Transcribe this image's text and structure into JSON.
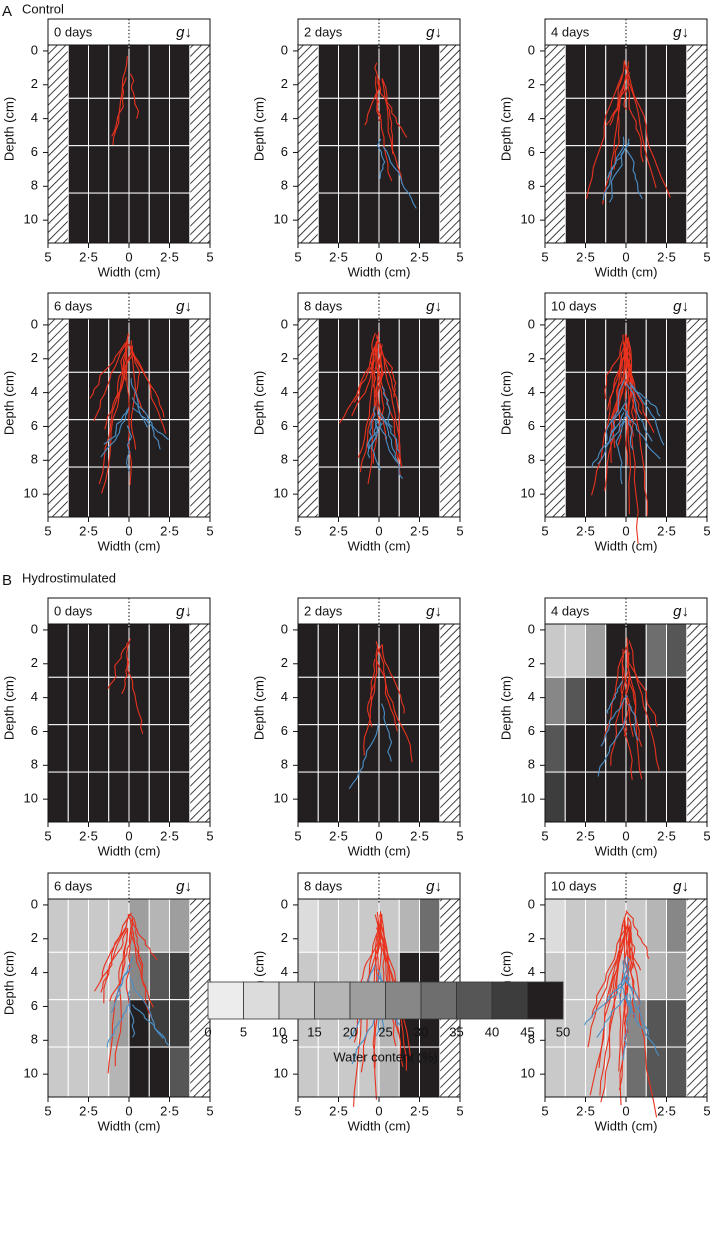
{
  "sections": [
    {
      "letter": "A",
      "label": "Control"
    },
    {
      "letter": "B",
      "label": "Hydrostimulated"
    }
  ],
  "chart_data": [
    {
      "type": "heatmap",
      "title": "0 days",
      "annotation": "g↓",
      "xlabel": "Width (cm)",
      "ylabel": "Depth (cm)",
      "xlim": [
        -5,
        5
      ],
      "ylim": [
        -0.35,
        11.35
      ],
      "xticks": [
        {
          "value": -5,
          "label": "5"
        },
        {
          "value": -2.5,
          "label": "2·5"
        },
        0,
        {
          "value": 2.5,
          "label": "2·5"
        },
        5
      ],
      "yticks": [
        0,
        2,
        4,
        6,
        8,
        10
      ],
      "x_edges": [
        -3.75,
        -2.5,
        -1.25,
        0,
        1.25,
        2.5,
        3.75
      ],
      "y_edges": [
        -0.35,
        2.8,
        5.6,
        8.4,
        11.35
      ],
      "z": [
        [
          47.5,
          47.5,
          47.5,
          47.5,
          47.5,
          47.5
        ],
        [
          47.5,
          47.5,
          47.5,
          47.5,
          47.5,
          47.5
        ],
        [
          47.5,
          47.5,
          47.5,
          47.5,
          47.5,
          47.5
        ],
        [
          47.5,
          47.5,
          47.5,
          47.5,
          47.5,
          47.5
        ]
      ]
    },
    {
      "type": "heatmap",
      "title": "2 days",
      "annotation": "g↓",
      "xlabel": "Width (cm)",
      "ylabel": "Depth (cm)",
      "xlim": [
        -5,
        5
      ],
      "ylim": [
        -0.35,
        11.35
      ],
      "xticks": [
        {
          "value": -5,
          "label": "5"
        },
        {
          "value": -2.5,
          "label": "2·5"
        },
        0,
        {
          "value": 2.5,
          "label": "2·5"
        },
        5
      ],
      "yticks": [
        0,
        2,
        4,
        6,
        8,
        10
      ],
      "x_edges": [
        -3.75,
        -2.5,
        -1.25,
        0,
        1.25,
        2.5,
        3.75
      ],
      "y_edges": [
        -0.35,
        2.8,
        5.6,
        8.4,
        11.35
      ],
      "z": [
        [
          47.5,
          47.5,
          47.5,
          47.5,
          47.5,
          47.5
        ],
        [
          47.5,
          47.5,
          47.5,
          47.5,
          47.5,
          47.5
        ],
        [
          47.5,
          47.5,
          47.5,
          47.5,
          47.5,
          47.5
        ],
        [
          47.5,
          47.5,
          47.5,
          47.5,
          47.5,
          47.5
        ]
      ]
    },
    {
      "type": "heatmap",
      "title": "4 days",
      "annotation": "g↓",
      "xlabel": "Width (cm)",
      "ylabel": "Depth (cm)",
      "xlim": [
        -5,
        5
      ],
      "ylim": [
        -0.35,
        11.35
      ],
      "xticks": [
        {
          "value": -5,
          "label": "5"
        },
        {
          "value": -2.5,
          "label": "2·5"
        },
        0,
        {
          "value": 2.5,
          "label": "2·5"
        },
        5
      ],
      "yticks": [
        0,
        2,
        4,
        6,
        8,
        10
      ],
      "x_edges": [
        -3.75,
        -2.5,
        -1.25,
        0,
        1.25,
        2.5,
        3.75
      ],
      "y_edges": [
        -0.35,
        2.8,
        5.6,
        8.4,
        11.35
      ],
      "z": [
        [
          47.5,
          47.5,
          47.5,
          47.5,
          47.5,
          47.5
        ],
        [
          47.5,
          47.5,
          47.5,
          47.5,
          47.5,
          47.5
        ],
        [
          47.5,
          47.5,
          47.5,
          47.5,
          47.5,
          47.5
        ],
        [
          47.5,
          47.5,
          47.5,
          47.5,
          47.5,
          47.5
        ]
      ]
    },
    {
      "type": "heatmap",
      "title": "6 days",
      "annotation": "g↓",
      "xlabel": "Width (cm)",
      "ylabel": "Depth (cm)",
      "xlim": [
        -5,
        5
      ],
      "ylim": [
        -0.35,
        11.35
      ],
      "xticks": [
        {
          "value": -5,
          "label": "5"
        },
        {
          "value": -2.5,
          "label": "2·5"
        },
        0,
        {
          "value": 2.5,
          "label": "2·5"
        },
        5
      ],
      "yticks": [
        0,
        2,
        4,
        6,
        8,
        10
      ],
      "x_edges": [
        -3.75,
        -2.5,
        -1.25,
        0,
        1.25,
        2.5,
        3.75
      ],
      "y_edges": [
        -0.35,
        2.8,
        5.6,
        8.4,
        11.35
      ],
      "z": [
        [
          47.5,
          47.5,
          47.5,
          47.5,
          47.5,
          47.5
        ],
        [
          47.5,
          47.5,
          47.5,
          47.5,
          47.5,
          47.5
        ],
        [
          47.5,
          47.5,
          47.5,
          47.5,
          47.5,
          47.5
        ],
        [
          47.5,
          47.5,
          47.5,
          47.5,
          47.5,
          47.5
        ]
      ]
    },
    {
      "type": "heatmap",
      "title": "8 days",
      "annotation": "g↓",
      "xlabel": "Width (cm)",
      "ylabel": "Depth (cm)",
      "xlim": [
        -5,
        5
      ],
      "ylim": [
        -0.35,
        11.35
      ],
      "xticks": [
        {
          "value": -5,
          "label": "5"
        },
        {
          "value": -2.5,
          "label": "2·5"
        },
        0,
        {
          "value": 2.5,
          "label": "2·5"
        },
        5
      ],
      "yticks": [
        0,
        2,
        4,
        6,
        8,
        10
      ],
      "x_edges": [
        -3.75,
        -2.5,
        -1.25,
        0,
        1.25,
        2.5,
        3.75
      ],
      "y_edges": [
        -0.35,
        2.8,
        5.6,
        8.4,
        11.35
      ],
      "z": [
        [
          47.5,
          47.5,
          47.5,
          47.5,
          47.5,
          47.5
        ],
        [
          47.5,
          47.5,
          47.5,
          47.5,
          47.5,
          47.5
        ],
        [
          47.5,
          47.5,
          47.5,
          47.5,
          47.5,
          47.5
        ],
        [
          47.5,
          47.5,
          47.5,
          47.5,
          47.5,
          47.5
        ]
      ]
    },
    {
      "type": "heatmap",
      "title": "10 days",
      "annotation": "g↓",
      "xlabel": "Width (cm)",
      "ylabel": "Depth (cm)",
      "xlim": [
        -5,
        5
      ],
      "ylim": [
        -0.35,
        11.35
      ],
      "xticks": [
        {
          "value": -5,
          "label": "5"
        },
        {
          "value": -2.5,
          "label": "2·5"
        },
        0,
        {
          "value": 2.5,
          "label": "2·5"
        },
        5
      ],
      "yticks": [
        0,
        2,
        4,
        6,
        8,
        10
      ],
      "x_edges": [
        -3.75,
        -2.5,
        -1.25,
        0,
        1.25,
        2.5,
        3.75
      ],
      "y_edges": [
        -0.35,
        2.8,
        5.6,
        8.4,
        11.35
      ],
      "z": [
        [
          47.5,
          47.5,
          47.5,
          47.5,
          47.5,
          47.5
        ],
        [
          47.5,
          47.5,
          47.5,
          47.5,
          47.5,
          47.5
        ],
        [
          47.5,
          47.5,
          47.5,
          47.5,
          47.5,
          47.5
        ],
        [
          47.5,
          47.5,
          47.5,
          47.5,
          47.5,
          47.5
        ]
      ]
    },
    {
      "type": "heatmap",
      "title": "0 days",
      "annotation": "g↓",
      "xlabel": "Width (cm)",
      "ylabel": "Depth (cm)",
      "xlim": [
        -5,
        5
      ],
      "ylim": [
        -0.35,
        11.35
      ],
      "xticks": [
        {
          "value": -5,
          "label": "5"
        },
        {
          "value": -2.5,
          "label": "2·5"
        },
        0,
        {
          "value": 2.5,
          "label": "2·5"
        },
        5
      ],
      "yticks": [
        0,
        2,
        4,
        6,
        8,
        10
      ],
      "x_edges": [
        -5,
        -3.75,
        -2.5,
        -1.25,
        0,
        1.25,
        2.5,
        3.75
      ],
      "y_edges": [
        -0.35,
        2.8,
        5.6,
        8.4,
        11.35
      ],
      "z": [
        [
          47.5,
          47.5,
          47.5,
          47.5,
          47.5,
          47.5,
          47.5
        ],
        [
          47.5,
          47.5,
          47.5,
          47.5,
          47.5,
          47.5,
          47.5
        ],
        [
          47.5,
          47.5,
          47.5,
          47.5,
          47.5,
          47.5,
          47.5
        ],
        [
          47.5,
          47.5,
          47.5,
          47.5,
          47.5,
          47.5,
          47.5
        ]
      ]
    },
    {
      "type": "heatmap",
      "title": "2 days",
      "annotation": "g↓",
      "xlabel": "Width (cm)",
      "ylabel": "Depth (cm)",
      "xlim": [
        -5,
        5
      ],
      "ylim": [
        -0.35,
        11.35
      ],
      "xticks": [
        {
          "value": -5,
          "label": "5"
        },
        {
          "value": -2.5,
          "label": "2·5"
        },
        0,
        {
          "value": 2.5,
          "label": "2·5"
        },
        5
      ],
      "yticks": [
        0,
        2,
        4,
        6,
        8,
        10
      ],
      "x_edges": [
        -5,
        -3.75,
        -2.5,
        -1.25,
        0,
        1.25,
        2.5,
        3.75
      ],
      "y_edges": [
        -0.35,
        2.8,
        5.6,
        8.4,
        11.35
      ],
      "z": [
        [
          47.5,
          47.5,
          47.5,
          47.5,
          47.5,
          47.5,
          47.5
        ],
        [
          47.5,
          47.5,
          47.5,
          47.5,
          47.5,
          47.5,
          47.5
        ],
        [
          47.5,
          47.5,
          47.5,
          47.5,
          47.5,
          47.5,
          47.5
        ],
        [
          47.5,
          47.5,
          47.5,
          47.5,
          47.5,
          47.5,
          47.5
        ]
      ]
    },
    {
      "type": "heatmap",
      "title": "4 days",
      "annotation": "g↓",
      "xlabel": "Width (cm)",
      "ylabel": "Depth (cm)",
      "xlim": [
        -5,
        5
      ],
      "ylim": [
        -0.35,
        11.35
      ],
      "xticks": [
        {
          "value": -5,
          "label": "5"
        },
        {
          "value": -2.5,
          "label": "2·5"
        },
        0,
        {
          "value": 2.5,
          "label": "2·5"
        },
        5
      ],
      "yticks": [
        0,
        2,
        4,
        6,
        8,
        10
      ],
      "x_edges": [
        -5,
        -3.75,
        -2.5,
        -1.25,
        0,
        1.25,
        2.5,
        3.75
      ],
      "y_edges": [
        -0.35,
        2.8,
        5.6,
        8.4,
        11.35
      ],
      "z": [
        [
          12.5,
          12.5,
          22.5,
          47.5,
          47.5,
          32.5,
          37.5
        ],
        [
          27.5,
          37.5,
          47.5,
          47.5,
          47.5,
          47.5,
          47.5
        ],
        [
          37.5,
          47.5,
          47.5,
          47.5,
          47.5,
          47.5,
          47.5
        ],
        [
          42.5,
          47.5,
          47.5,
          47.5,
          47.5,
          47.5,
          47.5
        ]
      ]
    },
    {
      "type": "heatmap",
      "title": "6 days",
      "annotation": "g↓",
      "xlabel": "Width (cm)",
      "ylabel": "Depth (cm)",
      "xlim": [
        -5,
        5
      ],
      "ylim": [
        -0.35,
        11.35
      ],
      "xticks": [
        {
          "value": -5,
          "label": "5"
        },
        {
          "value": -2.5,
          "label": "2·5"
        },
        0,
        {
          "value": 2.5,
          "label": "2·5"
        },
        5
      ],
      "yticks": [
        0,
        2,
        4,
        6,
        8,
        10
      ],
      "x_edges": [
        -5,
        -3.75,
        -2.5,
        -1.25,
        0,
        1.25,
        2.5,
        3.75
      ],
      "y_edges": [
        -0.35,
        2.8,
        5.6,
        8.4,
        11.35
      ],
      "z": [
        [
          12.5,
          12.5,
          12.5,
          12.5,
          22.5,
          17.5,
          22.5
        ],
        [
          12.5,
          12.5,
          12.5,
          12.5,
          27.5,
          37.5,
          42.5
        ],
        [
          12.5,
          12.5,
          12.5,
          22.5,
          47.5,
          42.5,
          42.5
        ],
        [
          12.5,
          12.5,
          12.5,
          17.5,
          47.5,
          47.5,
          37.5
        ]
      ]
    },
    {
      "type": "heatmap",
      "title": "8 days",
      "annotation": "g↓",
      "xlabel": "Width (cm)",
      "ylabel": "Depth (cm)",
      "xlim": [
        -5,
        5
      ],
      "ylim": [
        -0.35,
        11.35
      ],
      "xticks": [
        {
          "value": -5,
          "label": "5"
        },
        {
          "value": -2.5,
          "label": "2·5"
        },
        0,
        {
          "value": 2.5,
          "label": "2·5"
        },
        5
      ],
      "yticks": [
        0,
        2,
        4,
        6,
        8,
        10
      ],
      "x_edges": [
        -5,
        -3.75,
        -2.5,
        -1.25,
        0,
        1.25,
        2.5,
        3.75
      ],
      "y_edges": [
        -0.35,
        2.8,
        5.6,
        8.4,
        11.35
      ],
      "z": [
        [
          7.5,
          12.5,
          12.5,
          12.5,
          12.5,
          17.5,
          32.5
        ],
        [
          12.5,
          12.5,
          12.5,
          12.5,
          17.5,
          47.5,
          47.5
        ],
        [
          12.5,
          12.5,
          12.5,
          12.5,
          17.5,
          47.5,
          47.5
        ],
        [
          12.5,
          12.5,
          12.5,
          12.5,
          17.5,
          47.5,
          47.5
        ]
      ]
    },
    {
      "type": "heatmap",
      "title": "10 days",
      "annotation": "g↓",
      "xlabel": "Width (cm)",
      "ylabel": "Depth (cm)",
      "xlim": [
        -5,
        5
      ],
      "ylim": [
        -0.35,
        11.35
      ],
      "xticks": [
        {
          "value": -5,
          "label": "5"
        },
        {
          "value": -2.5,
          "label": "2·5"
        },
        0,
        {
          "value": 2.5,
          "label": "2·5"
        },
        5
      ],
      "yticks": [
        0,
        2,
        4,
        6,
        8,
        10
      ],
      "x_edges": [
        -5,
        -3.75,
        -2.5,
        -1.25,
        0,
        1.25,
        2.5,
        3.75
      ],
      "y_edges": [
        -0.35,
        2.8,
        5.6,
        8.4,
        11.35
      ],
      "z": [
        [
          7.5,
          12.5,
          12.5,
          12.5,
          12.5,
          17.5,
          27.5
        ],
        [
          12.5,
          12.5,
          12.5,
          12.5,
          12.5,
          17.5,
          22.5
        ],
        [
          12.5,
          12.5,
          12.5,
          12.5,
          27.5,
          37.5,
          37.5
        ],
        [
          12.5,
          12.5,
          12.5,
          12.5,
          32.5,
          37.5,
          37.5
        ]
      ]
    },
    {
      "type": "colorbar",
      "xlabel": "Water content (%)",
      "xlim": [
        0,
        50
      ],
      "xticks": [
        0,
        5,
        10,
        15,
        20,
        25,
        30,
        35,
        40,
        45,
        50
      ],
      "colors": [
        "#ececec",
        "#dcdcdc",
        "#c9c9c9",
        "#b5b5b5",
        "#9e9e9e",
        "#878787",
        "#6e6e6e",
        "#565656",
        "#3d3d3d",
        "#231f20"
      ]
    }
  ]
}
